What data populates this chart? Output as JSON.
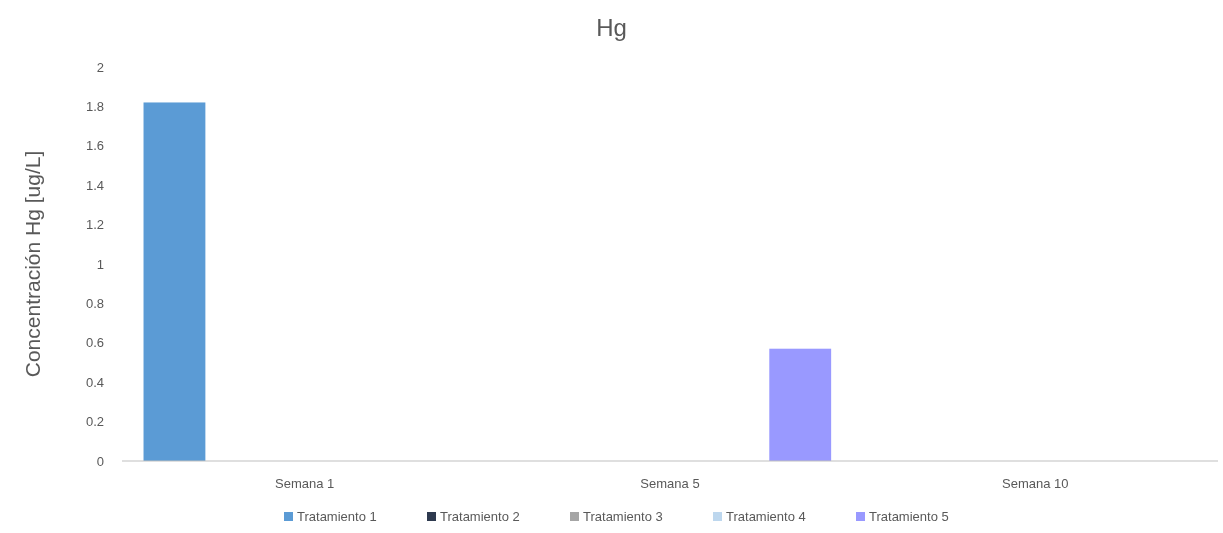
{
  "chart_data": {
    "type": "bar",
    "title": "Hg",
    "ylabel": "Concentración Hg [ug/L]",
    "categories": [
      "Semana 1",
      "Semana 5",
      "Semana 10"
    ],
    "series": [
      {
        "name": "Tratamiento 1",
        "color": "#5b9bd5",
        "values": [
          1.82,
          0,
          0
        ]
      },
      {
        "name": "Tratamiento 2",
        "color": "#2e3a4f",
        "values": [
          0,
          0,
          0
        ]
      },
      {
        "name": "Tratamiento 3",
        "color": "#a5a5a5",
        "values": [
          0,
          0,
          0
        ]
      },
      {
        "name": "Tratamiento 4",
        "color": "#bdd7ee",
        "values": [
          0,
          0,
          0
        ]
      },
      {
        "name": "Tratamiento 5",
        "color": "#9999ff",
        "values": [
          0,
          0.57,
          0
        ]
      }
    ],
    "ylim": [
      0,
      2
    ],
    "yticks": [
      0,
      0.2,
      0.4,
      0.6,
      0.8,
      1,
      1.2,
      1.4,
      1.6,
      1.8,
      2
    ],
    "grid": false,
    "legend": "bottom"
  }
}
